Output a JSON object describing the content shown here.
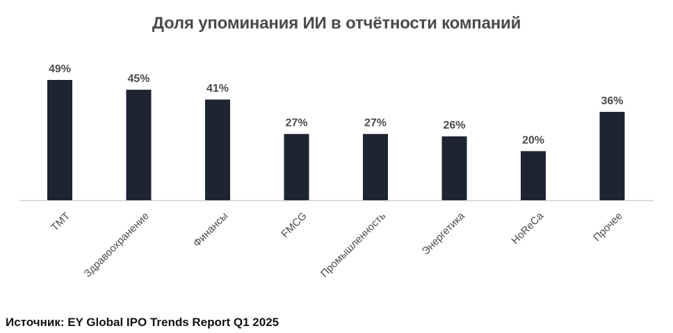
{
  "chart_data": {
    "type": "bar",
    "title": "Доля упоминания ИИ в отчётности компаний",
    "categories": [
      "TMT",
      "Здравоохранение",
      "Финансы",
      "FMCG",
      "Промышленность",
      "Энергетика",
      "HoReCa",
      "Прочее"
    ],
    "values": [
      49,
      45,
      41,
      27,
      27,
      26,
      20,
      36
    ],
    "value_labels": [
      "49%",
      "45%",
      "41%",
      "27%",
      "27%",
      "26%",
      "20%",
      "36%"
    ],
    "unit": "%",
    "ylim": [
      0,
      49
    ],
    "grid": false,
    "legend": "none",
    "bar_color": "#1f2433",
    "axis_color": "#cfcfcf",
    "label_color": "#4a4a4a",
    "source": "Источник: EY Global IPO Trends Report Q1 2025"
  }
}
